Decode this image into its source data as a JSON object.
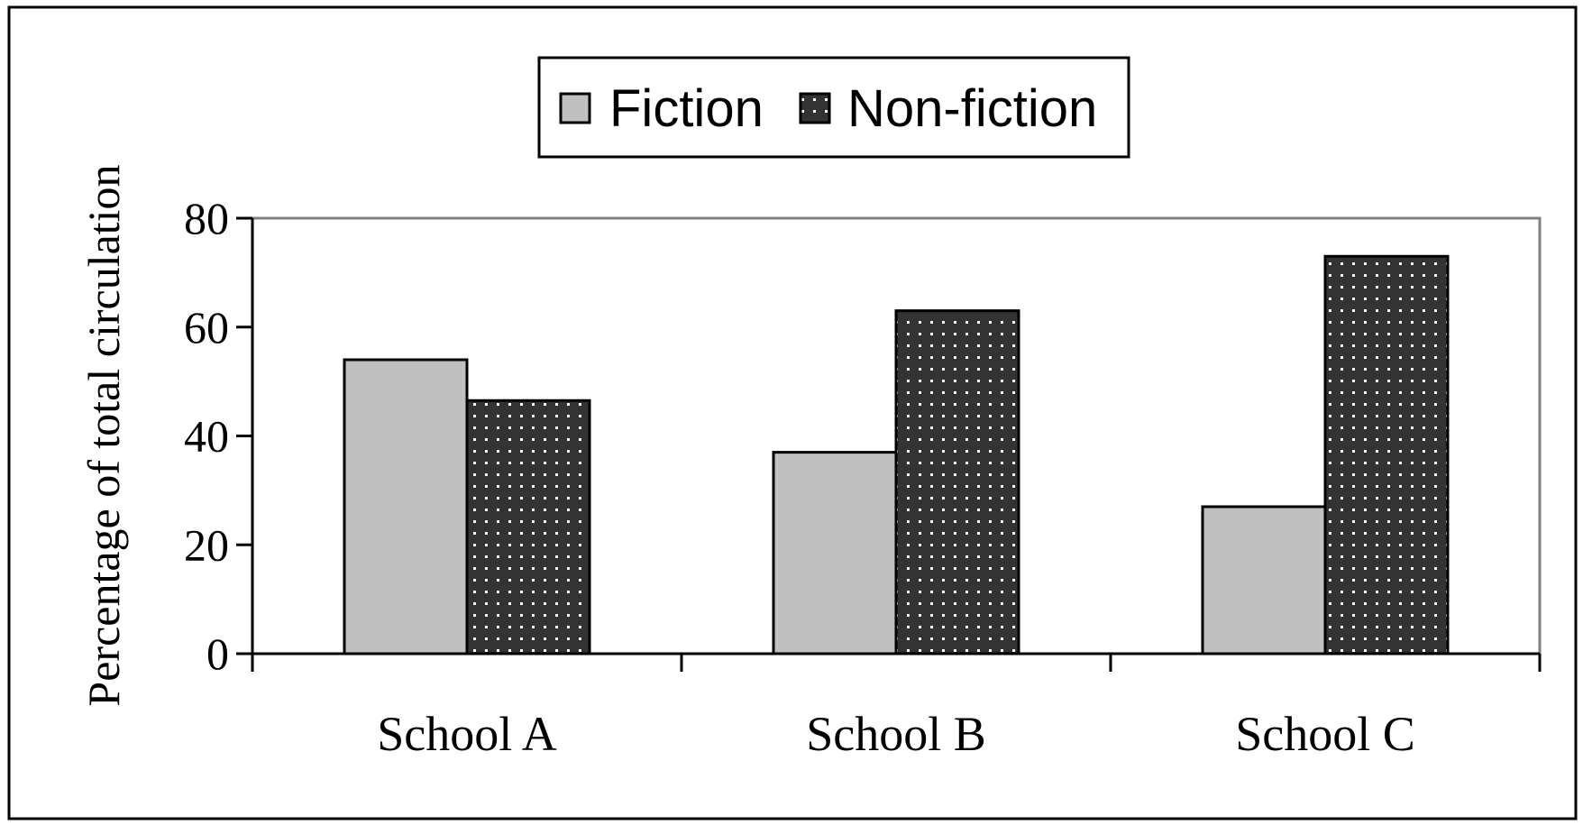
{
  "chart_data": {
    "type": "bar",
    "categories": [
      "School A",
      "School B",
      "School C"
    ],
    "series": [
      {
        "name": "Fiction",
        "values": [
          54,
          37,
          27
        ],
        "color": "#c0c0c0",
        "pattern": "solid"
      },
      {
        "name": "Non-fiction",
        "values": [
          46.5,
          63,
          73
        ],
        "color": "#333333",
        "pattern": "dots"
      }
    ],
    "title": "",
    "xlabel": "",
    "ylabel": "Percentage of total circulation",
    "ylim": [
      0,
      80
    ],
    "yticks": [
      0,
      20,
      40,
      60,
      80
    ],
    "grid": false,
    "legend_position": "top-center"
  }
}
